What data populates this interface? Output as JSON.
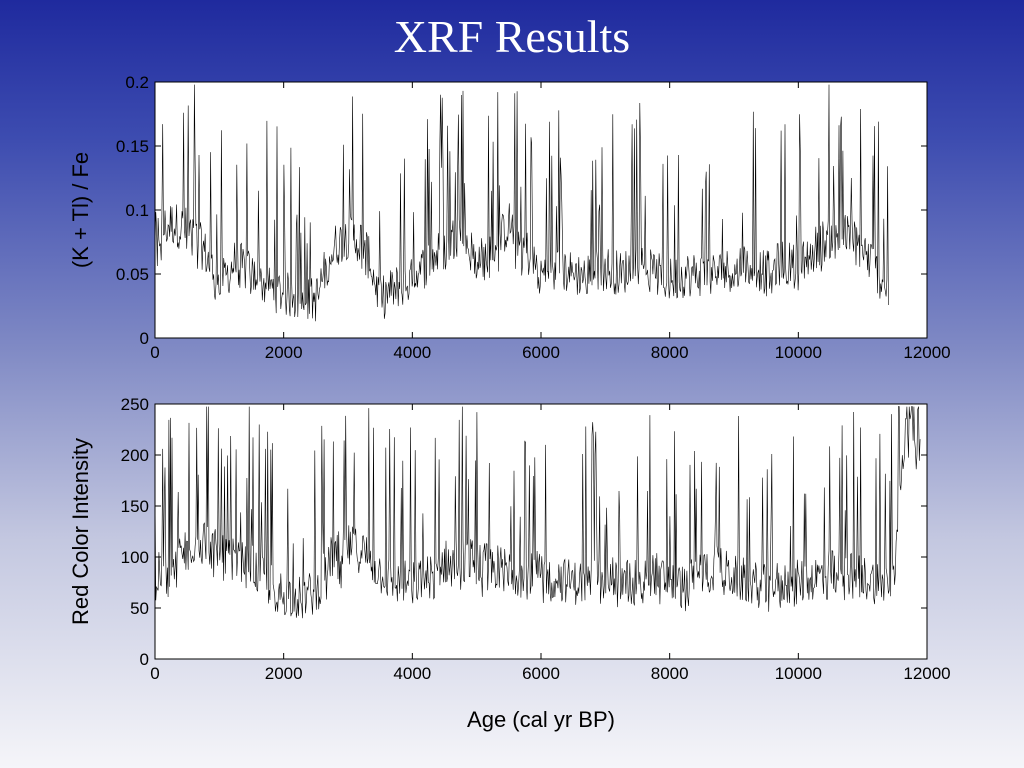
{
  "slide": {
    "title": "XRF Results"
  },
  "colors": {
    "background_top": "#1f2a9e",
    "background_bottom": "#f5f5f9",
    "plot_bg": "#ffffff",
    "line": "#000000",
    "title_text": "#ffffff"
  },
  "chart_data": [
    {
      "type": "line",
      "title": "",
      "xlabel": "",
      "ylabel": "(K + Tl) / Fe",
      "xlim": [
        0,
        12000
      ],
      "ylim": [
        0,
        0.2
      ],
      "xticks": [
        0,
        2000,
        4000,
        6000,
        8000,
        10000,
        12000
      ],
      "xtick_labels": [
        "0",
        "2000",
        "4000",
        "6000",
        "8000",
        "10000",
        "12000"
      ],
      "yticks": [
        0,
        0.05,
        0.1,
        0.15,
        0.2
      ],
      "ytick_labels": [
        "0",
        "0.05",
        "0.1",
        "0.15",
        "0.2"
      ],
      "grid": false,
      "legend": "none",
      "series": [
        {
          "x": [
            0,
            250,
            500,
            750,
            1000,
            1250,
            1500,
            1750,
            2000,
            2250,
            2500,
            2750,
            3000,
            3250,
            3500,
            3750,
            4000,
            4250,
            4500,
            4750,
            5000,
            5250,
            5500,
            5750,
            6000,
            6250,
            6500,
            6750,
            7000,
            7250,
            7500,
            7750,
            8000,
            8250,
            8500,
            8750,
            9000,
            9250,
            9500,
            9750,
            10000,
            10250,
            10500,
            10750,
            11000,
            11250,
            11400
          ],
          "y": [
            0.08,
            0.09,
            0.085,
            0.07,
            0.04,
            0.06,
            0.05,
            0.04,
            0.035,
            0.03,
            0.03,
            0.07,
            0.08,
            0.075,
            0.03,
            0.04,
            0.045,
            0.06,
            0.07,
            0.085,
            0.06,
            0.065,
            0.09,
            0.07,
            0.05,
            0.055,
            0.05,
            0.05,
            0.055,
            0.05,
            0.06,
            0.05,
            0.045,
            0.05,
            0.05,
            0.05,
            0.055,
            0.06,
            0.05,
            0.06,
            0.055,
            0.07,
            0.08,
            0.08,
            0.07,
            0.05,
            0.035
          ]
        }
      ]
    },
    {
      "type": "line",
      "title": "",
      "xlabel": "Age (cal yr BP)",
      "ylabel": "Red Color Intensity",
      "xlim": [
        0,
        12000
      ],
      "ylim": [
        0,
        250
      ],
      "xticks": [
        0,
        2000,
        4000,
        6000,
        8000,
        10000,
        12000
      ],
      "xtick_labels": [
        "0",
        "2000",
        "4000",
        "6000",
        "8000",
        "10000",
        "12000"
      ],
      "yticks": [
        0,
        50,
        100,
        150,
        200,
        250
      ],
      "ytick_labels": [
        "0",
        "50",
        "100",
        "150",
        "200",
        "250"
      ],
      "grid": false,
      "legend": "none",
      "series": [
        {
          "x": [
            0,
            250,
            500,
            750,
            1000,
            1250,
            1500,
            1750,
            2000,
            2250,
            2500,
            2750,
            3000,
            3250,
            3500,
            3750,
            4000,
            4250,
            4500,
            4750,
            5000,
            5250,
            5500,
            5750,
            6000,
            6250,
            6500,
            6750,
            7000,
            7250,
            7500,
            7750,
            8000,
            8250,
            8500,
            8750,
            9000,
            9250,
            9500,
            9750,
            10000,
            10250,
            10500,
            10750,
            11000,
            11250,
            11400,
            11500,
            11600,
            11700,
            11800,
            11900
          ],
          "y": [
            80,
            90,
            110,
            120,
            100,
            95,
            90,
            75,
            65,
            60,
            65,
            100,
            110,
            105,
            85,
            75,
            75,
            80,
            95,
            100,
            95,
            90,
            90,
            80,
            85,
            80,
            75,
            75,
            80,
            75,
            80,
            85,
            75,
            70,
            85,
            90,
            80,
            75,
            70,
            75,
            75,
            80,
            85,
            85,
            80,
            75,
            75,
            110,
            190,
            240,
            225,
            220
          ]
        }
      ]
    }
  ]
}
